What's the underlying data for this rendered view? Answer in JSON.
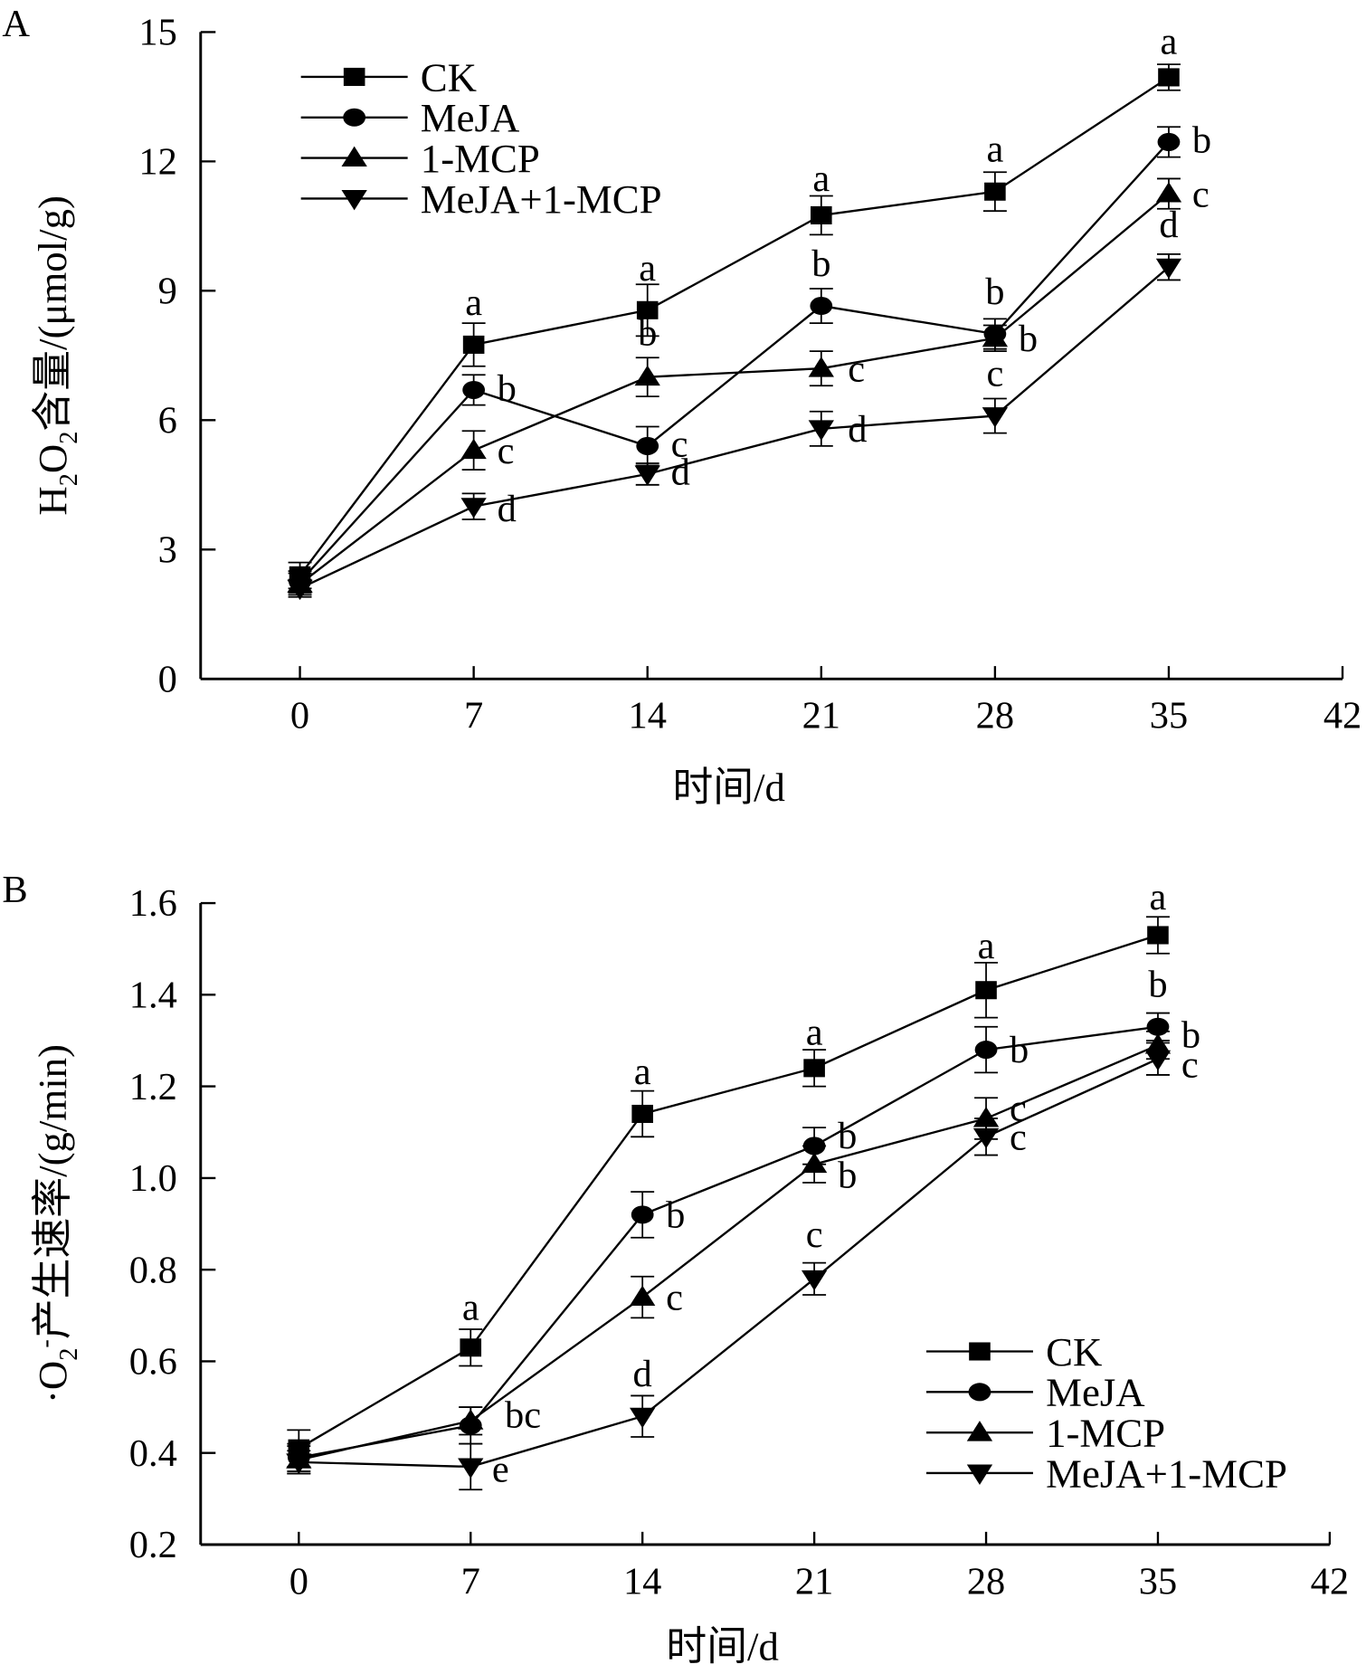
{
  "chart_data": [
    {
      "panel": "A",
      "type": "line",
      "title": "",
      "xlabel": "时间/d",
      "ylabel": "H₂O₂含量/(μmol/g)",
      "ylabel_parts": {
        "pre": "H",
        "sub1": "2",
        "mid": "O",
        "sub2": "2",
        "post": "含量/(μmol/g)"
      },
      "x": [
        0,
        7,
        14,
        21,
        28,
        35
      ],
      "xlim": [
        -4,
        42
      ],
      "ylim": [
        0,
        15
      ],
      "xticks": [
        0,
        7,
        14,
        21,
        28,
        35,
        42
      ],
      "yticks": [
        0,
        3,
        6,
        9,
        12,
        15
      ],
      "legend_position": "top-left",
      "series": [
        {
          "name": "CK",
          "marker": "square",
          "values": [
            2.4,
            7.75,
            8.55,
            10.75,
            11.3,
            13.95
          ],
          "errors": [
            0.3,
            0.5,
            0.6,
            0.45,
            0.45,
            0.3
          ],
          "labels": [
            "",
            "a",
            "a",
            "a",
            "a",
            "a"
          ]
        },
        {
          "name": "MeJA",
          "marker": "circle",
          "values": [
            2.25,
            6.7,
            5.4,
            8.65,
            8.0,
            12.45
          ],
          "errors": [
            0.25,
            0.35,
            0.45,
            0.4,
            0.35,
            0.35
          ],
          "labels": [
            "",
            "b",
            "c",
            "b",
            "b",
            "b"
          ]
        },
        {
          "name": "1-MCP",
          "marker": "triangle-up",
          "values": [
            2.2,
            5.3,
            7.0,
            7.2,
            7.9,
            11.25
          ],
          "errors": [
            0.25,
            0.45,
            0.45,
            0.4,
            0.3,
            0.35
          ],
          "labels": [
            "",
            "c",
            "b",
            "c",
            "b",
            "c"
          ]
        },
        {
          "name": "MeJA+1-MCP",
          "marker": "triangle-down",
          "values": [
            2.1,
            4.0,
            4.75,
            5.8,
            6.1,
            9.55
          ],
          "errors": [
            0.2,
            0.3,
            0.25,
            0.4,
            0.4,
            0.3
          ],
          "labels": [
            "",
            "d",
            "d",
            "d",
            "c",
            "d"
          ]
        }
      ]
    },
    {
      "panel": "B",
      "type": "line",
      "title": "",
      "xlabel": "时间/d",
      "ylabel": "·O₂⁻产生速率/(g/min)",
      "ylabel_parts": {
        "pre": "·O",
        "sub": "2",
        "sup": "-",
        "post": "产生速率/(g/min)"
      },
      "x": [
        0,
        7,
        14,
        21,
        28,
        35
      ],
      "xlim": [
        -4,
        42
      ],
      "ylim": [
        0.2,
        1.6
      ],
      "xticks": [
        0,
        7,
        14,
        21,
        28,
        35,
        42
      ],
      "yticks": [
        "0.2",
        "0.4",
        "0.6",
        "0.8",
        "1.0",
        "1.2",
        "1.4",
        "1.6"
      ],
      "legend_position": "bottom-right",
      "series": [
        {
          "name": "CK",
          "marker": "square",
          "values": [
            0.41,
            0.63,
            1.14,
            1.24,
            1.41,
            1.53
          ],
          "errors": [
            0.04,
            0.04,
            0.05,
            0.04,
            0.06,
            0.04
          ],
          "labels": [
            "",
            "a",
            "a",
            "a",
            "a",
            "a"
          ]
        },
        {
          "name": "MeJA",
          "marker": "circle",
          "values": [
            0.39,
            0.46,
            0.92,
            1.07,
            1.28,
            1.33
          ],
          "errors": [
            0.03,
            0.04,
            0.05,
            0.04,
            0.05,
            0.03
          ],
          "labels": [
            "",
            "bc",
            "b",
            "b",
            "b",
            "b"
          ]
        },
        {
          "name": "1-MCP",
          "marker": "triangle-up",
          "values": [
            0.385,
            0.47,
            0.74,
            1.03,
            1.13,
            1.29
          ],
          "errors": [
            0.03,
            0.03,
            0.045,
            0.04,
            0.045,
            0.03
          ],
          "labels": [
            "",
            "",
            "c",
            "b",
            "c",
            "b"
          ]
        },
        {
          "name": "MeJA+1-MCP",
          "marker": "triangle-down",
          "values": [
            0.38,
            0.37,
            0.48,
            0.78,
            1.09,
            1.26
          ],
          "errors": [
            0.025,
            0.05,
            0.045,
            0.035,
            0.04,
            0.035
          ],
          "labels": [
            "",
            "e",
            "d",
            "c",
            "c",
            "c"
          ]
        }
      ]
    }
  ],
  "panels": {
    "A": "A",
    "B": "B"
  }
}
